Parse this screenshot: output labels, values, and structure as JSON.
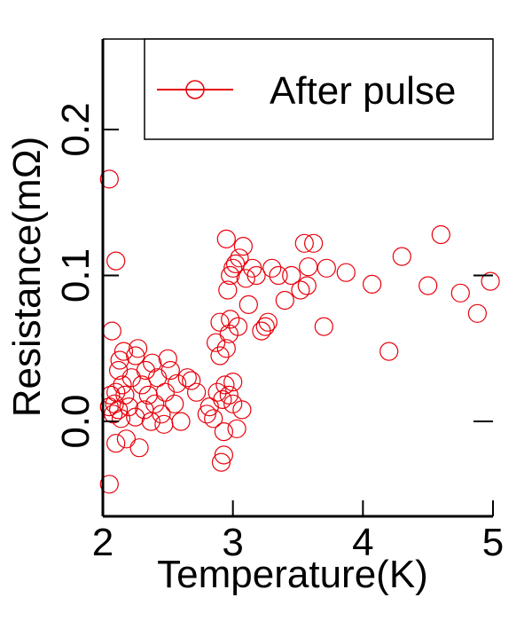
{
  "chart_data": {
    "type": "scatter",
    "xlabel": "Temperature(K)",
    "ylabel": "Resistance(mΩ)",
    "xlim": [
      2,
      5
    ],
    "ylim": [
      -0.065,
      0.262
    ],
    "xticks": [
      2,
      3,
      4,
      5
    ],
    "xtick_labels": [
      "2",
      "3",
      "4",
      "5"
    ],
    "yticks": [
      0.0,
      0.1,
      0.2
    ],
    "ytick_labels": [
      "0.0",
      "0.1",
      "0.2"
    ],
    "grid": false,
    "legend_position": "top-right",
    "series": [
      {
        "name": "After pulse",
        "color": "#e8000b",
        "marker": "open-circle",
        "points": [
          [
            2.05,
            0.166
          ],
          [
            2.05,
            0.01
          ],
          [
            2.06,
            0.018
          ],
          [
            2.07,
            0.062
          ],
          [
            2.05,
            -0.043
          ],
          [
            2.08,
            0.005
          ],
          [
            2.09,
            0.012
          ],
          [
            2.1,
            0.11
          ],
          [
            2.1,
            -0.015
          ],
          [
            2.1,
            0.02
          ],
          [
            2.12,
            0.035
          ],
          [
            2.12,
            0.008
          ],
          [
            2.13,
            0.042
          ],
          [
            2.14,
            0.002
          ],
          [
            2.15,
            0.025
          ],
          [
            2.16,
            0.048
          ],
          [
            2.17,
            0.018
          ],
          [
            2.18,
            -0.012
          ],
          [
            2.2,
            0.01
          ],
          [
            2.22,
            0.03
          ],
          [
            2.25,
            0.045
          ],
          [
            2.25,
            0.003
          ],
          [
            2.27,
            0.05
          ],
          [
            2.28,
            -0.018
          ],
          [
            2.3,
            0.025
          ],
          [
            2.32,
            0.008
          ],
          [
            2.33,
            0.035
          ],
          [
            2.35,
            0.018
          ],
          [
            2.37,
            0.0
          ],
          [
            2.38,
            0.04
          ],
          [
            2.4,
            0.012
          ],
          [
            2.42,
            0.03
          ],
          [
            2.45,
            0.005
          ],
          [
            2.47,
            -0.002
          ],
          [
            2.48,
            0.02
          ],
          [
            2.5,
            0.043
          ],
          [
            2.52,
            0.035
          ],
          [
            2.55,
            0.012
          ],
          [
            2.57,
            0.026
          ],
          [
            2.6,
            0.0
          ],
          [
            2.65,
            0.03
          ],
          [
            2.68,
            0.028
          ],
          [
            2.72,
            0.02
          ],
          [
            2.8,
            0.005
          ],
          [
            2.82,
            0.01
          ],
          [
            2.85,
            0.002
          ],
          [
            2.87,
            0.054
          ],
          [
            2.88,
            0.02
          ],
          [
            2.9,
            0.045
          ],
          [
            2.9,
            0.068
          ],
          [
            2.91,
            -0.028
          ],
          [
            2.92,
            0.015
          ],
          [
            2.93,
            -0.023
          ],
          [
            2.93,
            -0.007
          ],
          [
            2.94,
            0.025
          ],
          [
            2.95,
            0.05
          ],
          [
            2.95,
            0.125
          ],
          [
            2.96,
            0.09
          ],
          [
            2.97,
            0.06
          ],
          [
            2.97,
            0.018
          ],
          [
            2.98,
            0.1
          ],
          [
            2.98,
            0.07
          ],
          [
            3.0,
            0.105
          ],
          [
            3.0,
            0.012
          ],
          [
            3.0,
            0.027
          ],
          [
            3.02,
            0.108
          ],
          [
            3.03,
            -0.005
          ],
          [
            3.04,
            0.065
          ],
          [
            3.05,
            0.112
          ],
          [
            3.07,
            0.008
          ],
          [
            3.08,
            0.12
          ],
          [
            3.1,
            0.098
          ],
          [
            3.12,
            0.08
          ],
          [
            3.15,
            0.105
          ],
          [
            3.18,
            0.1
          ],
          [
            3.22,
            0.062
          ],
          [
            3.25,
            0.065
          ],
          [
            3.27,
            0.068
          ],
          [
            3.3,
            0.105
          ],
          [
            3.35,
            0.1
          ],
          [
            3.4,
            0.083
          ],
          [
            3.45,
            0.1
          ],
          [
            3.52,
            0.09
          ],
          [
            3.55,
            0.122
          ],
          [
            3.57,
            0.093
          ],
          [
            3.58,
            0.106
          ],
          [
            3.62,
            0.122
          ],
          [
            3.7,
            0.065
          ],
          [
            3.72,
            0.105
          ],
          [
            3.87,
            0.102
          ],
          [
            4.07,
            0.094
          ],
          [
            4.2,
            0.048
          ],
          [
            4.3,
            0.113
          ],
          [
            4.5,
            0.093
          ],
          [
            4.6,
            0.128
          ],
          [
            4.75,
            0.088
          ],
          [
            4.88,
            0.074
          ],
          [
            4.98,
            0.096
          ]
        ]
      }
    ]
  }
}
